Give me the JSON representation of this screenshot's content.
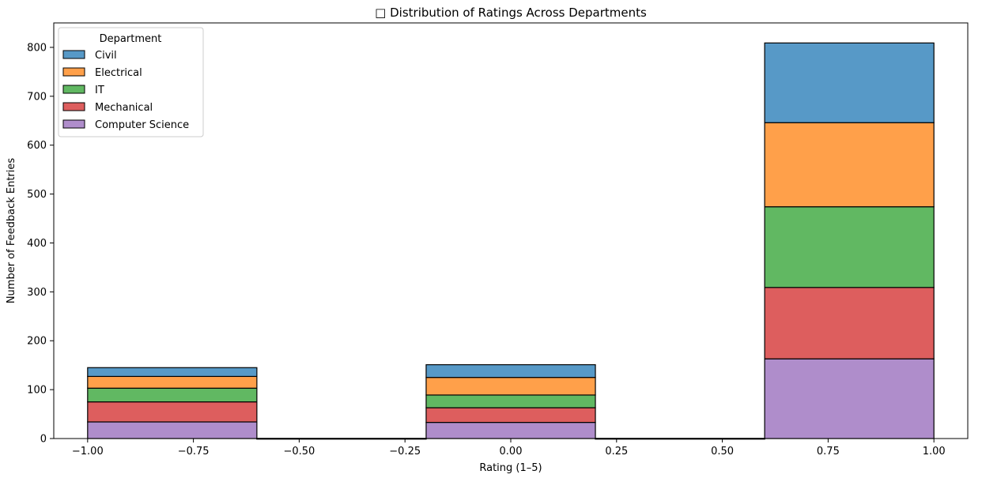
{
  "chart_data": {
    "type": "bar",
    "stacked": true,
    "title": "□ Distribution of Ratings Across Departments",
    "xlabel": "Rating (1–5)",
    "ylabel": "Number of Feedback Entries",
    "xlim": [
      -1.08,
      1.08
    ],
    "ylim": [
      0,
      850
    ],
    "xticks": [
      -1.0,
      -0.75,
      -0.5,
      -0.25,
      0.0,
      0.25,
      0.5,
      0.75,
      1.0
    ],
    "xtick_labels": [
      "−1.00",
      "−0.75",
      "−0.50",
      "−0.25",
      "0.00",
      "0.25",
      "0.50",
      "0.75",
      "1.00"
    ],
    "yticks": [
      0,
      100,
      200,
      300,
      400,
      500,
      600,
      700,
      800
    ],
    "ytick_labels": [
      "0",
      "100",
      "200",
      "300",
      "400",
      "500",
      "600",
      "700",
      "800"
    ],
    "bins": [
      [
        -1.0,
        -0.6
      ],
      [
        -0.6,
        -0.2
      ],
      [
        -0.2,
        0.2
      ],
      [
        0.2,
        0.6
      ],
      [
        0.6,
        1.0
      ]
    ],
    "legend_title": "Department",
    "legend_position": "top-left",
    "series": [
      {
        "name": "Civil",
        "color": "#5799c7",
        "values": [
          18,
          0,
          26,
          0,
          163
        ]
      },
      {
        "name": "Electrical",
        "color": "#ffa04a",
        "values": [
          24,
          0,
          36,
          0,
          172
        ]
      },
      {
        "name": "IT",
        "color": "#61b862",
        "values": [
          28,
          0,
          26,
          0,
          165
        ]
      },
      {
        "name": "Mechanical",
        "color": "#dd5e5e",
        "values": [
          41,
          0,
          30,
          0,
          146
        ]
      },
      {
        "name": "Computer Science",
        "color": "#af8dcb",
        "values": [
          34,
          0,
          33,
          0,
          163
        ]
      }
    ]
  }
}
